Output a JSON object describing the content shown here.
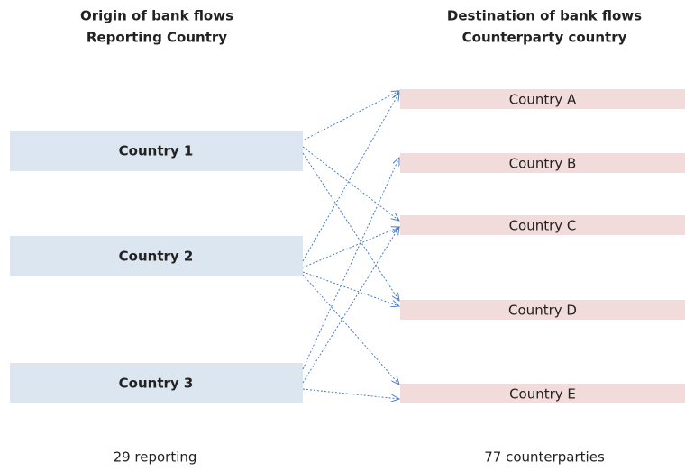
{
  "left_header": {
    "line1": "Origin of bank flows",
    "line2": "Reporting Country"
  },
  "right_header": {
    "line1": "Destination of bank flows",
    "line2": "Counterparty country"
  },
  "origins": [
    {
      "label": "Country 1"
    },
    {
      "label": "Country 2"
    },
    {
      "label": "Country 3"
    }
  ],
  "destinations": [
    {
      "label": "Country A"
    },
    {
      "label": "Country B"
    },
    {
      "label": "Country C"
    },
    {
      "label": "Country D"
    },
    {
      "label": "Country E"
    }
  ],
  "left_footer": "29 reporting",
  "right_footer": "77 counterparties"
}
